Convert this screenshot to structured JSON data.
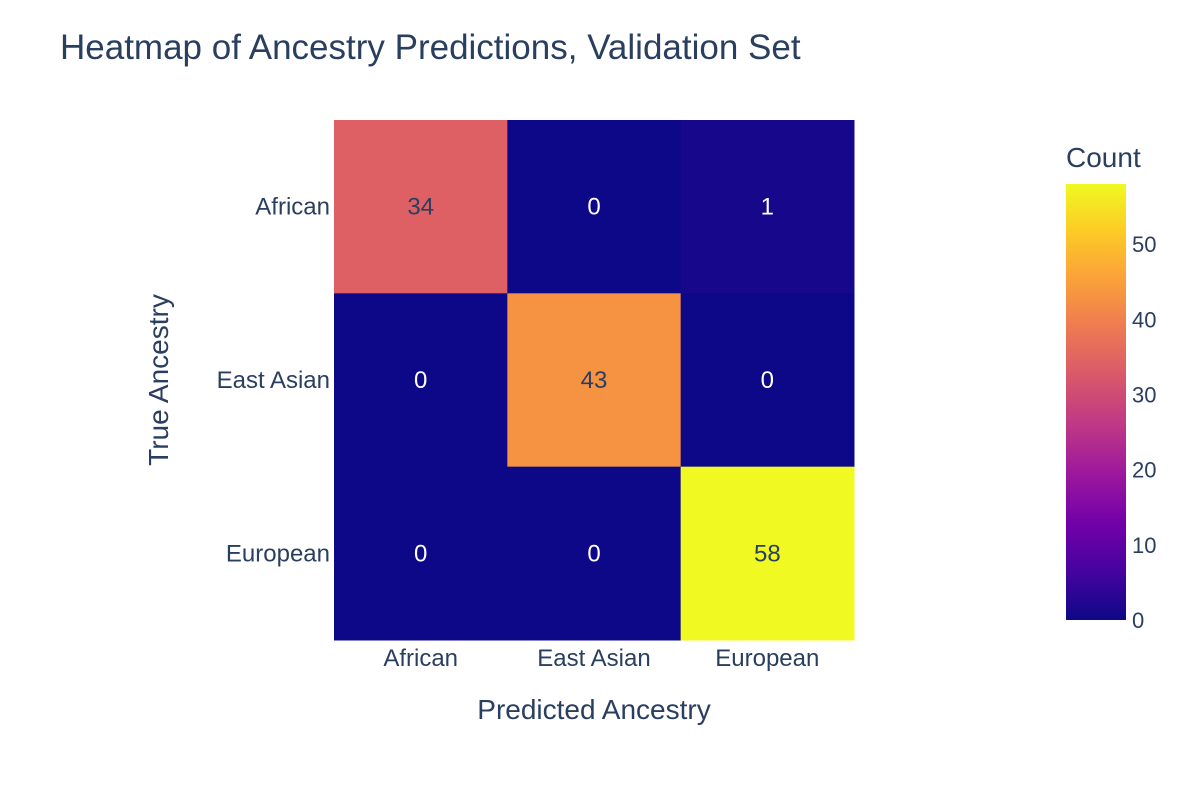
{
  "chart_data": {
    "type": "heatmap",
    "title": "Heatmap of Ancestry Predictions, Validation Set",
    "xlabel": "Predicted Ancestry",
    "ylabel": "True Ancestry",
    "x_categories": [
      "African",
      "East Asian",
      "European"
    ],
    "y_categories": [
      "African",
      "East Asian",
      "European"
    ],
    "values": [
      [
        34,
        0,
        1
      ],
      [
        0,
        43,
        0
      ],
      [
        0,
        0,
        58
      ]
    ],
    "colorbar": {
      "title": "Count",
      "range": [
        0,
        58
      ],
      "ticks": [
        0,
        10,
        20,
        30,
        40,
        50
      ],
      "colorscale": "plasma"
    }
  }
}
